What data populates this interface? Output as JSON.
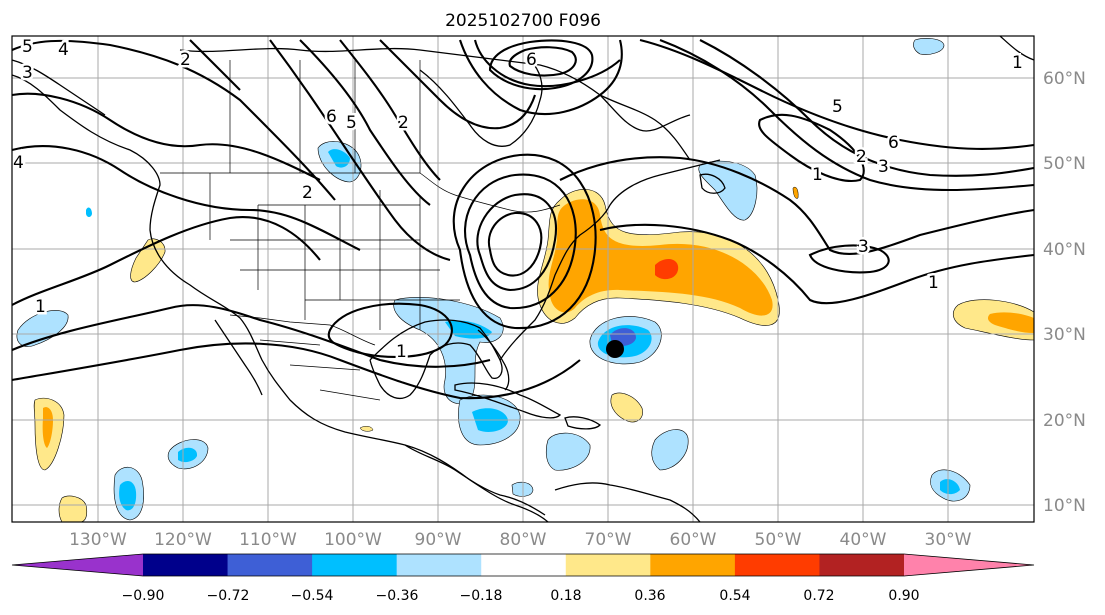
{
  "title": "2025102700 F096",
  "map": {
    "lon_labels": [
      "130°W",
      "120°W",
      "110°W",
      "100°W",
      "90°W",
      "80°W",
      "70°W",
      "60°W",
      "50°W",
      "40°W",
      "30°W"
    ],
    "lat_labels": [
      "60°N",
      "50°N",
      "40°N",
      "30°N",
      "20°N",
      "10°N"
    ],
    "contour_labels": [
      "5",
      "4",
      "3",
      "2",
      "6",
      "6",
      "5",
      "2",
      "2",
      "1",
      "6",
      "5",
      "3",
      "2",
      "1",
      "1",
      "3",
      "1",
      "1",
      "4"
    ],
    "marker": "storm-center-dot"
  },
  "colorbar": {
    "ticks": [
      "−0.90",
      "−0.72",
      "−0.54",
      "−0.36",
      "−0.18",
      "0.18",
      "0.36",
      "0.54",
      "0.72",
      "0.90"
    ],
    "colors": [
      "#9932cc",
      "#00008b",
      "#3e5fd6",
      "#00bfff",
      "#aee2ff",
      "#ffffff",
      "#ffe88a",
      "#ffa500",
      "#ff3c00",
      "#b22222",
      "#ff82ab"
    ]
  }
}
